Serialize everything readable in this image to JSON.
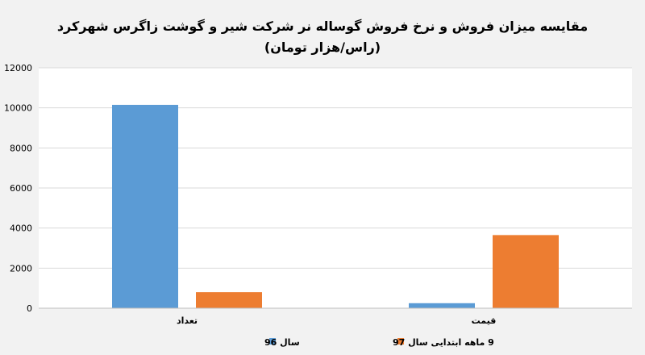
{
  "chart_data": {
    "type": "bar",
    "title": "مقایسه میزان فروش و نرخ فروش گوساله نر شرکت شیر و گوشت زاگرس شهرکرد",
    "subtitle": "(راس/هزار تومان)",
    "categories": [
      "تعداد",
      "قیمت"
    ],
    "series": [
      {
        "name": "سال 96",
        "values": [
          10150,
          250
        ],
        "color": "#5b9bd5"
      },
      {
        "name": "9 ماهه ابتدایی سال 97",
        "values": [
          800,
          3650
        ],
        "color": "#ed7d31"
      }
    ],
    "xlabel": "",
    "ylabel": "",
    "ylim": [
      0,
      12000
    ],
    "yticks": [
      "0",
      "2000",
      "4000",
      "6000",
      "8000",
      "10000",
      "12000"
    ],
    "grid": true,
    "legend": "bottom"
  },
  "colors": {
    "background": "#f2f2f2",
    "plot_background": "#ffffff",
    "gridline": "#d9d9d9",
    "axis": "#bfbfbf"
  }
}
